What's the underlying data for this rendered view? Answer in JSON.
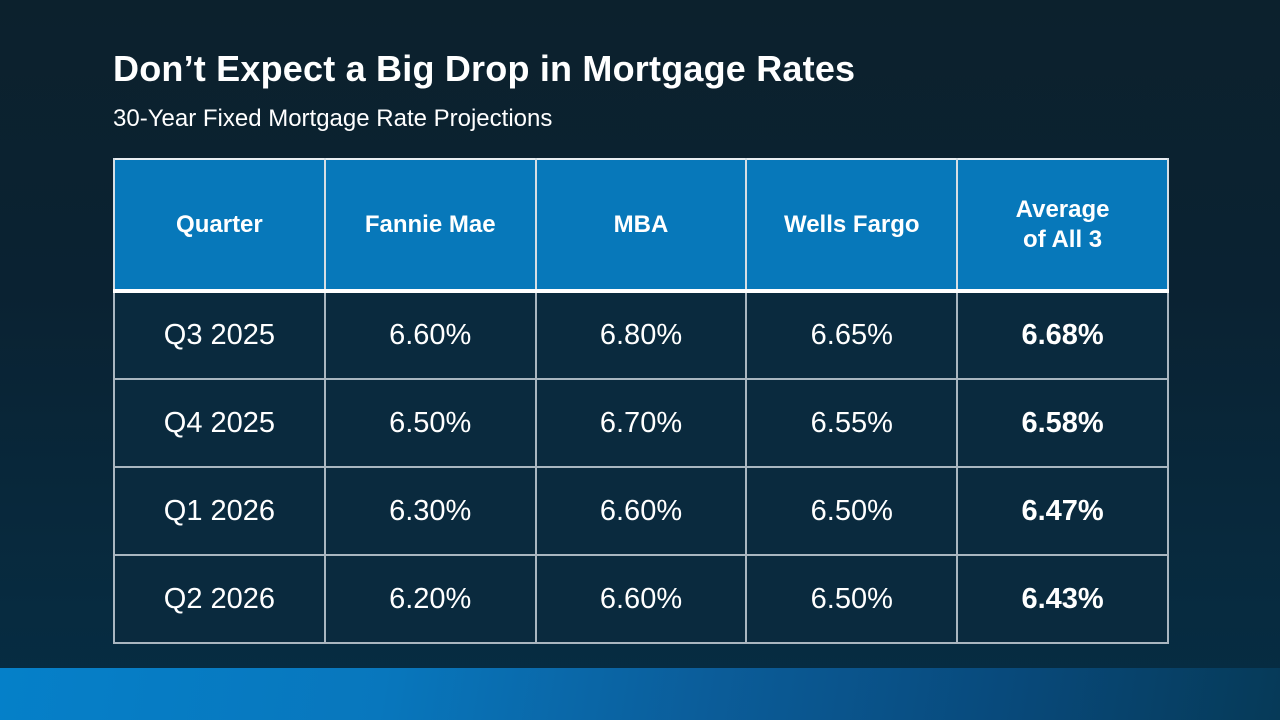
{
  "slide": {
    "title": "Don’t Expect a Big Drop in Mortgage Rates",
    "subtitle": "30-Year Fixed Mortgage Rate Projections"
  },
  "colors": {
    "header_blue": "#0778ba",
    "cell_navy": "#0a2a3e",
    "text_white": "#ffffff",
    "accent_bar_left": "#0580c9",
    "accent_bar_right": "#063a58"
  },
  "chart_data": {
    "type": "table",
    "title": "Don’t Expect a Big Drop in Mortgage Rates",
    "subtitle": "30-Year Fixed Mortgage Rate Projections",
    "columns": [
      "Quarter",
      "Fannie Mae",
      "MBA",
      "Wells Fargo",
      "Average\nof All 3"
    ],
    "rows": [
      [
        "Q3 2025",
        "6.60%",
        "6.80%",
        "6.65%",
        "6.68%"
      ],
      [
        "Q4 2025",
        "6.50%",
        "6.70%",
        "6.55%",
        "6.58%"
      ],
      [
        "Q1 2026",
        "6.30%",
        "6.60%",
        "6.50%",
        "6.47%"
      ],
      [
        "Q2 2026",
        "6.20%",
        "6.60%",
        "6.50%",
        "6.43%"
      ]
    ],
    "notes": {
      "last_column_bold": true,
      "values_are_percent_rates": true
    }
  }
}
